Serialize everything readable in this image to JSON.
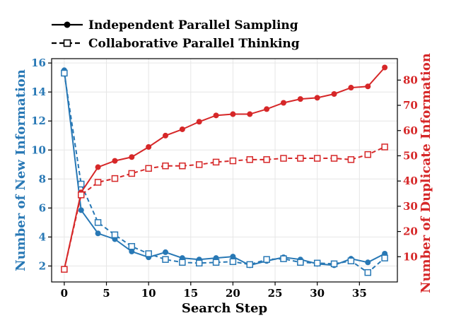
{
  "chart_data": {
    "type": "line",
    "xlabel": "Search Step",
    "ylabel_left": "Number of New Information",
    "ylabel_right": "Number of Duplicate Information",
    "xlim": [
      -1.5,
      39.5
    ],
    "ylim_left": [
      0.9,
      16.3
    ],
    "ylim_right": [
      0,
      88.5
    ],
    "grid": true,
    "legend_position": "top-left (outside plot)",
    "legend_order": [
      "Independent Parallel Sampling",
      "Collaborative Parallel Thinking"
    ],
    "colors": {
      "left_axis": "#2878b5",
      "right_axis": "#d62728"
    },
    "x": [
      0,
      2,
      4,
      6,
      8,
      10,
      12,
      14,
      16,
      18,
      20,
      22,
      24,
      26,
      28,
      30,
      32,
      34,
      36,
      38
    ],
    "xticks": [
      0,
      5,
      10,
      15,
      20,
      25,
      30,
      35
    ],
    "yticks_left": [
      2,
      4,
      6,
      8,
      10,
      12,
      14,
      16
    ],
    "yticks_right": [
      10,
      20,
      30,
      40,
      50,
      60,
      70,
      80
    ],
    "series": [
      {
        "name": "Independent Parallel Sampling",
        "axis": "left",
        "color": "#2878b5",
        "style": "solid",
        "marker": "circle",
        "values": [
          15.5,
          5.85,
          4.25,
          3.85,
          3.0,
          2.6,
          2.95,
          2.55,
          2.45,
          2.55,
          2.65,
          2.05,
          2.35,
          2.6,
          2.45,
          2.15,
          2.05,
          2.5,
          2.25,
          2.85
        ]
      },
      {
        "name": "Collaborative Parallel Thinking",
        "axis": "left",
        "color": "#2878b5",
        "style": "dashed",
        "marker": "square",
        "values": [
          15.3,
          7.65,
          5.0,
          4.15,
          3.35,
          2.85,
          2.45,
          2.25,
          2.2,
          2.25,
          2.3,
          2.1,
          2.45,
          2.5,
          2.25,
          2.2,
          2.15,
          2.35,
          1.55,
          2.55
        ]
      },
      {
        "axis": "right",
        "color": "#d62728",
        "style": "solid",
        "marker": "circle",
        "values": [
          5,
          35.5,
          45.5,
          48,
          49.5,
          53.5,
          58,
          60.5,
          63.5,
          66,
          66.5,
          66.5,
          68.5,
          71,
          72.5,
          73,
          74.5,
          77,
          77.5,
          85
        ]
      },
      {
        "axis": "right",
        "color": "#d62728",
        "style": "dashed",
        "marker": "square",
        "values": [
          5,
          34.5,
          39.5,
          41,
          43,
          45,
          46,
          46,
          46.5,
          47.5,
          48,
          48.5,
          48.5,
          49,
          49,
          49,
          49,
          48.5,
          50.5,
          53.5
        ]
      }
    ]
  }
}
